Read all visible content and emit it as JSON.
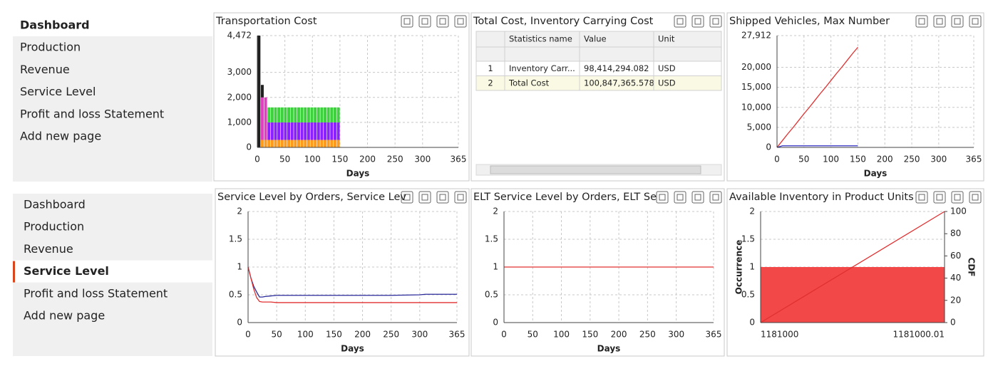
{
  "sidebars": [
    {
      "items": [
        "Dashboard",
        "Production",
        "Revenue",
        "Service Level",
        "Profit and loss Statement",
        "Add new page"
      ],
      "active": 0
    },
    {
      "items": [
        "Dashboard",
        "Production",
        "Revenue",
        "Service Level",
        "Profit and loss Statement",
        "Add new page"
      ],
      "active": 3
    }
  ],
  "table": {
    "title": "Total Cost, Inventory Carrying Cost",
    "columns": [
      "Statistics name",
      "Value",
      "Unit"
    ],
    "rows": [
      [
        "1",
        "Inventory Carr...",
        "98,414,294.082",
        "USD"
      ],
      [
        "2",
        "Total Cost",
        "100,847,365.578",
        "USD"
      ]
    ]
  },
  "chart_data": [
    {
      "type": "bar",
      "stacked": true,
      "title": "Transportation Cost",
      "xlabel": "Days",
      "x": [
        3,
        9,
        15,
        21,
        27,
        33,
        39,
        45,
        51,
        57,
        63,
        69,
        75,
        81,
        87,
        93,
        99,
        105,
        111,
        117,
        123,
        129,
        135,
        141,
        147
      ],
      "series": [
        {
          "color": "#ff9a1a",
          "values": [
            0,
            300,
            300,
            300,
            300,
            300,
            300,
            300,
            300,
            300,
            300,
            300,
            300,
            300,
            300,
            300,
            300,
            300,
            300,
            300,
            300,
            300,
            300,
            300,
            300
          ]
        },
        {
          "color": "#8a1fff",
          "values": [
            0,
            0,
            0,
            700,
            700,
            700,
            700,
            700,
            700,
            700,
            700,
            700,
            700,
            700,
            700,
            700,
            700,
            700,
            700,
            700,
            700,
            700,
            700,
            700,
            700
          ]
        },
        {
          "color": "#3ed13e",
          "values": [
            0,
            0,
            0,
            600,
            600,
            600,
            600,
            600,
            600,
            600,
            600,
            600,
            600,
            600,
            600,
            600,
            600,
            600,
            600,
            600,
            600,
            600,
            600,
            600,
            600
          ]
        },
        {
          "color": "#e040c0",
          "values": [
            0,
            1700,
            1700,
            0,
            0,
            0,
            0,
            0,
            0,
            0,
            0,
            0,
            0,
            0,
            0,
            0,
            0,
            0,
            0,
            0,
            0,
            0,
            0,
            0,
            0
          ]
        },
        {
          "color": "#202020",
          "values": [
            4472,
            500,
            0,
            0,
            0,
            0,
            0,
            0,
            0,
            0,
            0,
            0,
            0,
            0,
            0,
            0,
            0,
            0,
            0,
            0,
            0,
            0,
            0,
            0,
            0
          ]
        }
      ],
      "xlim": [
        0,
        365
      ],
      "xticks": [
        0,
        50,
        100,
        150,
        200,
        250,
        300,
        365
      ],
      "ylim": [
        0,
        4472
      ],
      "yticks": [
        0,
        {
          "value": 1000,
          "label": "1,000"
        },
        {
          "value": 2000,
          "label": "2,000"
        },
        {
          "value": 3000,
          "label": "3,000"
        },
        {
          "value": 4472,
          "label": "4,472"
        }
      ],
      "grid": true
    },
    {
      "type": "line",
      "title": "Shipped Vehicles, Max Number",
      "xlabel": "Days",
      "x": [
        0,
        10,
        20,
        30,
        40,
        50,
        60,
        70,
        80,
        90,
        100,
        110,
        120,
        130,
        140,
        150
      ],
      "series": [
        {
          "color": "#e03030",
          "values": [
            0,
            1700,
            3400,
            5000,
            6700,
            8400,
            10000,
            11700,
            13400,
            15000,
            16700,
            18400,
            20000,
            21700,
            23400,
            25000
          ]
        },
        {
          "color": "#3030c0",
          "values": [
            0,
            400,
            400,
            400,
            400,
            400,
            400,
            400,
            400,
            400,
            400,
            400,
            400,
            400,
            400,
            400
          ]
        }
      ],
      "xlim": [
        0,
        365
      ],
      "xticks": [
        0,
        50,
        100,
        150,
        200,
        250,
        300,
        365
      ],
      "ylim": [
        0,
        27912
      ],
      "yticks": [
        0,
        {
          "value": 5000,
          "label": "5,000"
        },
        {
          "value": 10000,
          "label": "10,000"
        },
        {
          "value": 15000,
          "label": "15,000"
        },
        {
          "value": 20000,
          "label": "20,000"
        },
        {
          "value": 27912,
          "label": "27,912"
        }
      ],
      "grid": true
    },
    {
      "type": "line",
      "title": "Service Level by Orders, Service Lev",
      "xlabel": "Days",
      "x": [
        0,
        5,
        10,
        15,
        20,
        25,
        30,
        40,
        50,
        100,
        150,
        200,
        250,
        300,
        310,
        365
      ],
      "series": [
        {
          "color": "#2a2a9a",
          "values": [
            1,
            0.8,
            0.65,
            0.55,
            0.46,
            0.46,
            0.47,
            0.48,
            0.49,
            0.49,
            0.49,
            0.49,
            0.49,
            0.5,
            0.51,
            0.51
          ]
        },
        {
          "color": "#e03030",
          "values": [
            1,
            0.8,
            0.6,
            0.45,
            0.38,
            0.37,
            0.37,
            0.37,
            0.36,
            0.36,
            0.36,
            0.36,
            0.36,
            0.36,
            0.36,
            0.36
          ]
        }
      ],
      "xlim": [
        0,
        365
      ],
      "xticks": [
        0,
        50,
        100,
        150,
        200,
        250,
        300,
        365
      ],
      "ylim": [
        0,
        2
      ],
      "yticks": [
        0,
        0.5,
        1,
        1.5,
        2
      ],
      "grid": true
    },
    {
      "type": "line",
      "title": "ELT Service Level by Orders, ELT Se",
      "xlabel": "Days",
      "x": [
        0,
        365
      ],
      "series": [
        {
          "color": "#e03030",
          "values": [
            1,
            1
          ]
        }
      ],
      "xlim": [
        0,
        365
      ],
      "xticks": [
        0,
        50,
        100,
        150,
        200,
        250,
        300,
        365
      ],
      "ylim": [
        0,
        2
      ],
      "yticks": [
        0,
        0.5,
        1,
        1.5,
        2
      ],
      "grid": true
    },
    {
      "type": "histogram",
      "title": "Available Inventory in Product Units",
      "ylabel": "Occurrence",
      "y2label": "CDF",
      "bins": [
        1181000,
        1181000.01
      ],
      "values": [
        1
      ],
      "color": "#f24848",
      "series": [
        {
          "color": "#e03030",
          "axis": "y2",
          "x": [
            1181000,
            1181000.01
          ],
          "values": [
            0,
            100
          ]
        }
      ],
      "xlim": [
        1181000,
        1181000.01
      ],
      "xticks": [
        1181000,
        1181000.01
      ],
      "ylim": [
        0,
        2
      ],
      "yticks": [
        0,
        0.5,
        1,
        1.5,
        2
      ],
      "y2lim": [
        0,
        100
      ],
      "y2ticks": [
        0,
        20,
        40,
        60,
        80,
        100
      ],
      "grid": true
    }
  ]
}
